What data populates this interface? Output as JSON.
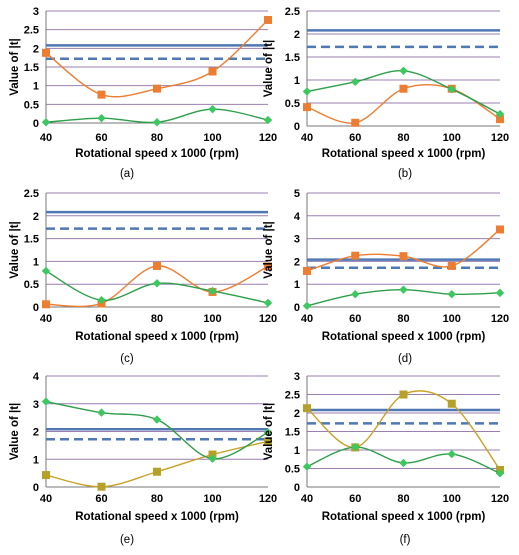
{
  "colors": {
    "grid": "#9c7fb0",
    "axis": "#777777",
    "threshold": "#4f78b5",
    "orange": "#ed7d31",
    "green": "#2e9e4a",
    "green_marker": "#3cc85f",
    "olive": "#c9a227",
    "olive_marker": "#b5a02a",
    "text": "#000000"
  },
  "chart_data": [
    {
      "panel": "(a)",
      "type": "line",
      "xlabel": "Rotational speed x 1000 (rpm)",
      "ylabel": "Value of |t|",
      "x": [
        40,
        60,
        80,
        100,
        120
      ],
      "x_ticks": [
        "40",
        "60",
        "80",
        "100",
        "120"
      ],
      "ylim": [
        0,
        3
      ],
      "y_ticks": [
        "0",
        "0.5",
        "1",
        "1.5",
        "2",
        "2.5",
        "3"
      ],
      "grid": true,
      "thresholds": {
        "solid": 2.08,
        "dashed": 1.72
      },
      "series": [
        {
          "color": "orange",
          "marker": "square",
          "values": [
            1.88,
            0.76,
            0.92,
            1.38,
            2.76
          ]
        },
        {
          "color": "green",
          "marker": "diamond",
          "values": [
            0.02,
            0.13,
            0.02,
            0.37,
            0.08
          ]
        }
      ]
    },
    {
      "panel": "(b)",
      "type": "line",
      "xlabel": "Rotational speed x 1000 (rpm)",
      "ylabel": "Value of |t|",
      "x": [
        40,
        60,
        80,
        100,
        120
      ],
      "x_ticks": [
        "40",
        "60",
        "80",
        "100",
        "120"
      ],
      "ylim": [
        0,
        2.5
      ],
      "y_ticks": [
        "0",
        "0.5",
        "1",
        "1.5",
        "2",
        "2.5"
      ],
      "grid": true,
      "thresholds": {
        "solid": 2.08,
        "dashed": 1.72
      },
      "series": [
        {
          "color": "orange",
          "marker": "square",
          "values": [
            0.41,
            0.07,
            0.81,
            0.81,
            0.15
          ]
        },
        {
          "color": "green",
          "marker": "diamond",
          "values": [
            0.75,
            0.96,
            1.2,
            0.8,
            0.26
          ]
        }
      ]
    },
    {
      "panel": "(c)",
      "type": "line",
      "xlabel": "Rotational speed x 1000 (rpm)",
      "ylabel": "Value of |t|",
      "x": [
        40,
        60,
        80,
        100,
        120
      ],
      "x_ticks": [
        "40",
        "60",
        "80",
        "100",
        "120"
      ],
      "ylim": [
        0,
        2.5
      ],
      "y_ticks": [
        "0",
        "0.5",
        "1",
        "1.5",
        "2",
        "2.5"
      ],
      "grid": true,
      "thresholds": {
        "solid": 2.08,
        "dashed": 1.72
      },
      "series": [
        {
          "color": "orange",
          "marker": "square",
          "values": [
            0.06,
            0.08,
            0.9,
            0.33,
            0.89
          ]
        },
        {
          "color": "green",
          "marker": "diamond",
          "values": [
            0.79,
            0.15,
            0.52,
            0.35,
            0.09
          ]
        }
      ]
    },
    {
      "panel": "(d)",
      "type": "line",
      "xlabel": "Rotational speed x 1000 (rpm)",
      "ylabel": "Value of |t|",
      "x": [
        40,
        60,
        80,
        100,
        120
      ],
      "x_ticks": [
        "40",
        "60",
        "80",
        "100",
        "120"
      ],
      "ylim": [
        0,
        5
      ],
      "y_ticks": [
        "0",
        "1",
        "2",
        "3",
        "4",
        "5"
      ],
      "grid": true,
      "thresholds": {
        "solid": 2.08,
        "dashed": 1.72
      },
      "series": [
        {
          "color": "orange",
          "marker": "square",
          "values": [
            1.58,
            2.25,
            2.23,
            1.8,
            3.4
          ]
        },
        {
          "color": "green",
          "marker": "diamond",
          "values": [
            0.05,
            0.56,
            0.76,
            0.56,
            0.62
          ]
        }
      ]
    },
    {
      "panel": "(e)",
      "type": "line",
      "xlabel": "Rotational speed x 1000 (rpm)",
      "ylabel": "Value of |t|",
      "x": [
        40,
        60,
        80,
        100,
        120
      ],
      "x_ticks": [
        "40",
        "60",
        "80",
        "100",
        "120"
      ],
      "ylim": [
        0,
        4
      ],
      "y_ticks": [
        "0",
        "1",
        "2",
        "3",
        "4"
      ],
      "grid": true,
      "thresholds": {
        "solid": 2.08,
        "dashed": 1.72
      },
      "series": [
        {
          "color": "olive",
          "marker": "square",
          "values": [
            0.43,
            0.01,
            0.55,
            1.17,
            1.64
          ]
        },
        {
          "color": "green",
          "marker": "diamond",
          "values": [
            3.08,
            2.68,
            2.43,
            1.02,
            1.97
          ]
        }
      ]
    },
    {
      "panel": "(f)",
      "type": "line",
      "xlabel": "Rotational speed x 1000 (rpm)",
      "ylabel": "Value of |t|",
      "x": [
        40,
        60,
        80,
        100,
        120
      ],
      "x_ticks": [
        "40",
        "60",
        "80",
        "100",
        "120"
      ],
      "ylim": [
        0,
        3
      ],
      "y_ticks": [
        "0",
        "0.5",
        "1",
        "1.5",
        "2",
        "2.5",
        "3"
      ],
      "grid": true,
      "thresholds": {
        "solid": 2.08,
        "dashed": 1.72
      },
      "series": [
        {
          "color": "olive",
          "marker": "square",
          "values": [
            2.13,
            1.07,
            2.5,
            2.25,
            0.46
          ]
        },
        {
          "color": "green",
          "marker": "diamond",
          "values": [
            0.55,
            1.08,
            0.65,
            0.89,
            0.37
          ]
        }
      ]
    }
  ]
}
